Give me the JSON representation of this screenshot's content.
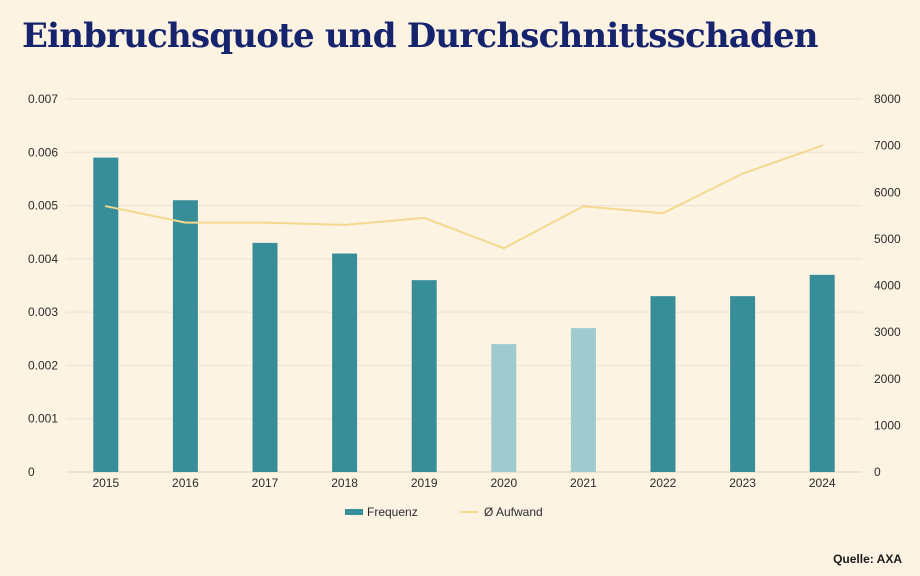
{
  "title": "Einbruchsquote und Durchschnittsschaden",
  "source": "Quelle: AXA",
  "colors": {
    "background": "#fdf3e3",
    "bar": "#378e99",
    "bar_light": "#9fcad0",
    "line": "#f2d98e",
    "title": "#16236d",
    "grid": "#e9e1d2"
  },
  "chart_data": {
    "type": "bar",
    "categories": [
      "2015",
      "2016",
      "2017",
      "2018",
      "2019",
      "2020",
      "2021",
      "2022",
      "2023",
      "2024"
    ],
    "series": [
      {
        "name": "Frequenz",
        "type": "bar",
        "axis": "left",
        "values": [
          0.0059,
          0.0051,
          0.0043,
          0.0041,
          0.0036,
          0.0024,
          0.0027,
          0.0033,
          0.0033,
          0.0037
        ],
        "highlight": [
          "normal",
          "normal",
          "normal",
          "normal",
          "normal",
          "light",
          "light",
          "normal",
          "normal",
          "normal"
        ]
      },
      {
        "name": "Ø Aufwand",
        "type": "line",
        "axis": "right",
        "values": [
          5700,
          5350,
          5350,
          5300,
          5450,
          4800,
          5700,
          5550,
          6400,
          7000
        ]
      }
    ],
    "y_left": {
      "ylim": [
        0,
        0.007
      ],
      "ticks": [
        "0",
        "0.001",
        "0.002",
        "0.003",
        "0.004",
        "0.005",
        "0.006",
        "0.007"
      ]
    },
    "y_right": {
      "ylim": [
        0,
        8000
      ],
      "ticks": [
        "0",
        "1000",
        "2000",
        "3000",
        "4000",
        "5000",
        "6000",
        "7000",
        "8000"
      ]
    },
    "grid": true,
    "legend": "bottom-center"
  }
}
